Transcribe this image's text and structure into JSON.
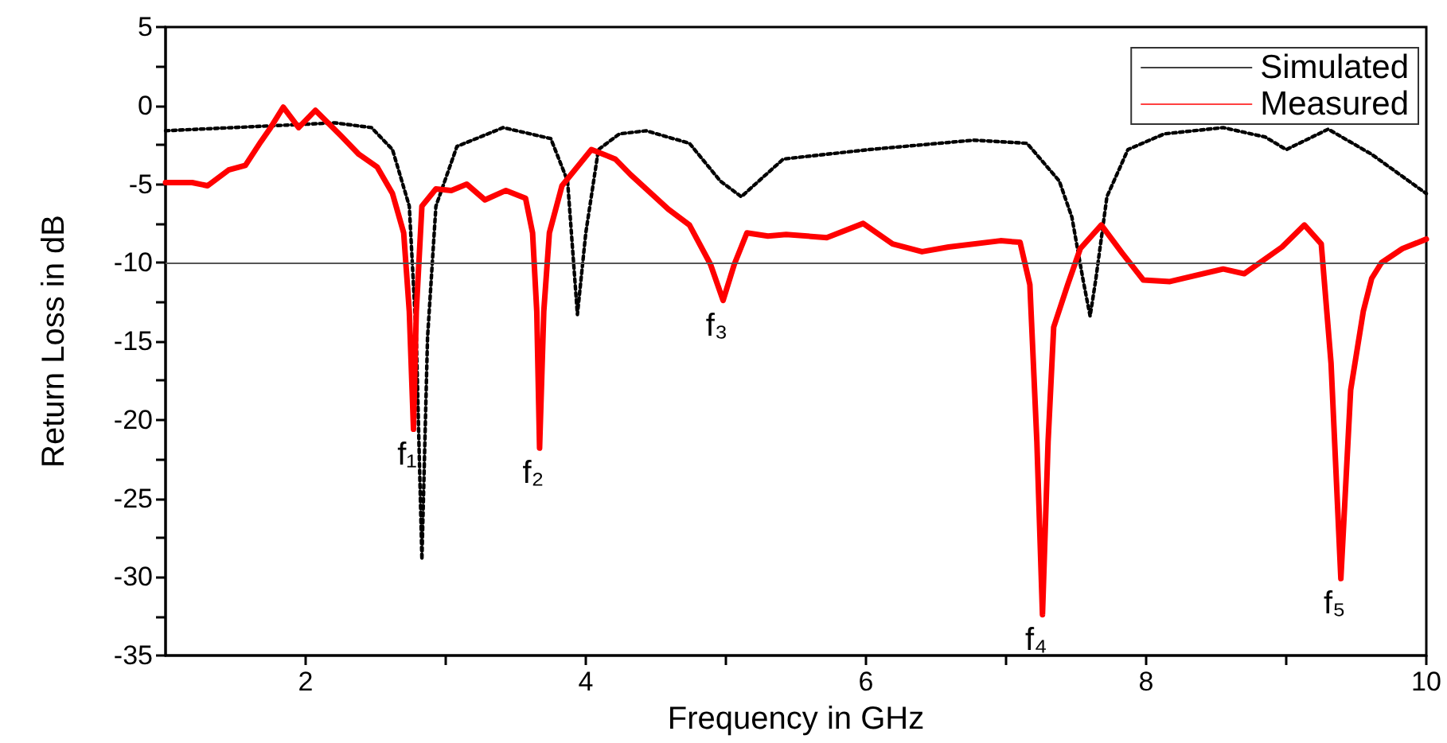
{
  "chart_data": {
    "type": "line",
    "xlabel": "Frequency in GHz",
    "ylabel": "Return Loss in dB",
    "xlim": [
      1,
      10
    ],
    "xticks": [
      2,
      {
        "value": 3,
        "label": null
      },
      4,
      {
        "value": 5,
        "label": null
      },
      6,
      {
        "value": 7,
        "label": null
      },
      8,
      {
        "value": 9,
        "label": null
      },
      10
    ],
    "ylim": [
      -35,
      5
    ],
    "yticks": [
      -35,
      {
        "value": -32.5,
        "label": null
      },
      -30,
      {
        "value": -27.5,
        "label": null
      },
      -25,
      {
        "value": -22.5,
        "label": null
      },
      -20,
      {
        "value": -17.5,
        "label": null
      },
      -15,
      {
        "value": -12.5,
        "label": null
      },
      -10,
      {
        "value": -7.5,
        "label": null
      },
      -5,
      {
        "value": -2.5,
        "label": null
      },
      0,
      {
        "value": 2.5,
        "label": null
      },
      5
    ],
    "grid": false,
    "legend": "top right",
    "marker": "none",
    "ref_lines": [
      {
        "axis": "y",
        "value": -10,
        "color": "#555555",
        "line_style": "solid"
      }
    ],
    "annotations": [
      {
        "text": "f₁",
        "x": 2.77,
        "y": -20.6
      },
      {
        "text": "f₂",
        "x": 3.67,
        "y": -21.8
      },
      {
        "text": "f₃",
        "x": 4.98,
        "y": -12.4
      },
      {
        "text": "f₄",
        "x": 7.26,
        "y": -32.4
      },
      {
        "text": "f₅",
        "x": 9.39,
        "y": -30.1
      }
    ],
    "series": [
      {
        "name": "Simulated",
        "color": "#000000",
        "line_style": "dotted",
        "x": [
          1,
          1.72,
          2.21,
          2.47,
          2.62,
          2.74,
          2.79,
          2.83,
          2.87,
          2.93,
          3.08,
          3.41,
          3.75,
          3.87,
          3.94,
          4.0,
          4.09,
          4.24,
          4.43,
          4.74,
          4.96,
          5.11,
          5.26,
          5.41,
          6.02,
          6.77,
          7.15,
          7.38,
          7.47,
          7.55,
          7.6,
          7.64,
          7.72,
          7.87,
          8.13,
          8.55,
          8.85,
          9.0,
          9.3,
          9.61,
          10
        ],
        "values": [
          -1.6,
          -1.3,
          -1.1,
          -1.4,
          -2.8,
          -6.4,
          -14.8,
          -28.9,
          -14.8,
          -6.4,
          -2.6,
          -1.4,
          -2.1,
          -4.8,
          -13.3,
          -8.1,
          -2.8,
          -1.8,
          -1.6,
          -2.4,
          -4.8,
          -5.8,
          -4.6,
          -3.4,
          -2.8,
          -2.2,
          -2.4,
          -4.8,
          -7.1,
          -11.1,
          -13.4,
          -11.1,
          -5.8,
          -2.8,
          -1.8,
          -1.4,
          -2.0,
          -2.8,
          -1.5,
          -3.1,
          -5.6
        ]
      },
      {
        "name": "Measured",
        "color": "#ff0000",
        "line_style": "solid",
        "x": [
          1,
          1.19,
          1.3,
          1.45,
          1.57,
          1.68,
          1.75,
          1.84,
          1.95,
          2.07,
          2.25,
          2.38,
          2.51,
          2.62,
          2.7,
          2.74,
          2.77,
          2.79,
          2.83,
          2.93,
          3.04,
          3.15,
          3.28,
          3.43,
          3.57,
          3.62,
          3.65,
          3.67,
          3.7,
          3.74,
          3.83,
          4.04,
          4.21,
          4.32,
          4.59,
          4.74,
          4.89,
          4.98,
          5.06,
          5.15,
          5.3,
          5.43,
          5.72,
          5.98,
          6.19,
          6.4,
          6.59,
          6.96,
          7.1,
          7.17,
          7.22,
          7.26,
          7.3,
          7.34,
          7.44,
          7.53,
          7.68,
          7.83,
          7.98,
          8.17,
          8.55,
          8.7,
          8.97,
          9.13,
          9.25,
          9.32,
          9.39,
          9.46,
          9.55,
          9.61,
          9.68,
          9.83,
          10
        ],
        "values": [
          -4.9,
          -4.9,
          -5.1,
          -4.1,
          -3.8,
          -2.3,
          -1.4,
          -0.1,
          -1.4,
          -0.3,
          -1.9,
          -3.1,
          -3.9,
          -5.6,
          -8.1,
          -13.1,
          -20.6,
          -13.1,
          -6.4,
          -5.3,
          -5.4,
          -5.0,
          -6.0,
          -5.4,
          -5.9,
          -8.1,
          -13.1,
          -21.8,
          -13.1,
          -8.1,
          -5.1,
          -2.8,
          -3.4,
          -4.4,
          -6.6,
          -7.6,
          -10.1,
          -12.4,
          -10.1,
          -8.1,
          -8.3,
          -8.2,
          -8.4,
          -7.5,
          -8.8,
          -9.3,
          -9.0,
          -8.6,
          -8.7,
          -11.4,
          -21.4,
          -32.4,
          -21.4,
          -14.1,
          -11.4,
          -9.1,
          -7.6,
          -9.4,
          -11.1,
          -11.2,
          -10.4,
          -10.7,
          -9.0,
          -7.6,
          -8.8,
          -16.4,
          -30.1,
          -18.1,
          -13.1,
          -11.0,
          -10.0,
          -9.1,
          -8.5
        ]
      }
    ]
  }
}
